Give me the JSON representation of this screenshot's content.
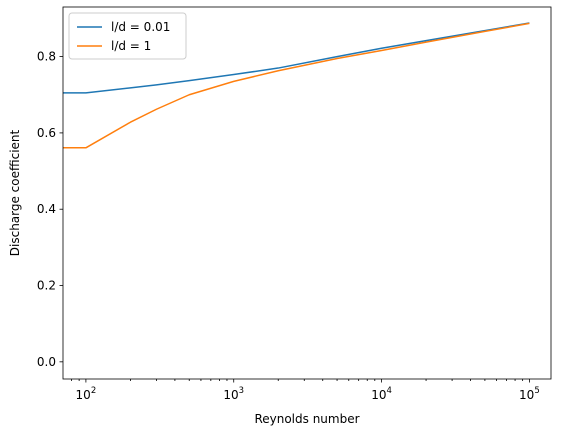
{
  "chart_data": {
    "type": "line",
    "title": "",
    "xlabel": "Reynolds number",
    "ylabel": "Discharge coefficient",
    "xscale": "log",
    "xlim": [
      70,
      140000
    ],
    "ylim": [
      -0.045,
      0.93
    ],
    "grid": false,
    "legend_position": "top-left",
    "x_ticks": [
      {
        "value": 100,
        "base": "10",
        "exp": "2"
      },
      {
        "value": 1000,
        "base": "10",
        "exp": "3"
      },
      {
        "value": 10000,
        "base": "10",
        "exp": "4"
      },
      {
        "value": 100000,
        "base": "10",
        "exp": "5"
      }
    ],
    "y_ticks": [
      {
        "value": 0.0,
        "label": "0.0"
      },
      {
        "value": 0.2,
        "label": "0.2"
      },
      {
        "value": 0.4,
        "label": "0.4"
      },
      {
        "value": 0.6,
        "label": "0.6"
      },
      {
        "value": 0.8,
        "label": "0.8"
      }
    ],
    "series": [
      {
        "name": "l/d = 0.01",
        "color": "#1f77b4",
        "x": [
          70,
          100,
          200,
          300,
          500,
          1000,
          2000,
          5000,
          10000,
          20000,
          50000,
          100000
        ],
        "y": [
          0.705,
          0.705,
          0.718,
          0.726,
          0.737,
          0.753,
          0.77,
          0.8,
          0.822,
          0.842,
          0.868,
          0.888
        ]
      },
      {
        "name": "l/d = 1",
        "color": "#ff7f0e",
        "x": [
          70,
          100,
          200,
          300,
          500,
          1000,
          2000,
          5000,
          10000,
          20000,
          50000,
          100000
        ],
        "y": [
          0.561,
          0.561,
          0.628,
          0.662,
          0.7,
          0.735,
          0.763,
          0.795,
          0.816,
          0.838,
          0.866,
          0.887
        ]
      }
    ]
  }
}
